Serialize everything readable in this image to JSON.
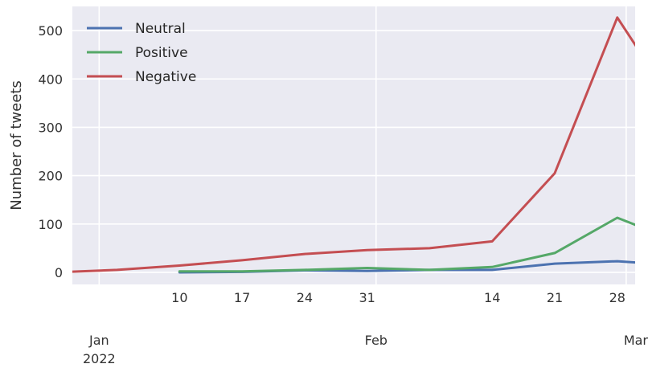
{
  "chart_data": {
    "type": "line",
    "title": "",
    "xlabel": "",
    "ylabel": "Number of tweets",
    "x_range": [
      "2021-12-29",
      "2022-03-02"
    ],
    "ylim": [
      -25,
      550
    ],
    "grid": true,
    "legend_position": "top-left",
    "y_ticks": [
      0,
      100,
      200,
      300,
      400,
      500
    ],
    "x_minor_ticks": [
      {
        "date": "2022-01-10",
        "label": "10"
      },
      {
        "date": "2022-01-17",
        "label": "17"
      },
      {
        "date": "2022-01-24",
        "label": "24"
      },
      {
        "date": "2022-01-31",
        "label": "31"
      },
      {
        "date": "2022-02-14",
        "label": "14"
      },
      {
        "date": "2022-02-21",
        "label": "21"
      },
      {
        "date": "2022-02-28",
        "label": "28"
      }
    ],
    "x_major_ticks": [
      {
        "date": "2022-01-01",
        "label": "Jan",
        "sublabel": "2022"
      },
      {
        "date": "2022-02-01",
        "label": "Feb",
        "sublabel": ""
      },
      {
        "date": "2022-03-01",
        "label": "Mar",
        "sublabel": ""
      }
    ],
    "series": [
      {
        "name": "Neutral",
        "color": "#4c72b0",
        "points": [
          {
            "x": "2022-01-10",
            "y": 0
          },
          {
            "x": "2022-01-17",
            "y": 1
          },
          {
            "x": "2022-01-24",
            "y": 4
          },
          {
            "x": "2022-01-31",
            "y": 3
          },
          {
            "x": "2022-02-07",
            "y": 5
          },
          {
            "x": "2022-02-14",
            "y": 5
          },
          {
            "x": "2022-02-21",
            "y": 18
          },
          {
            "x": "2022-02-28",
            "y": 23
          },
          {
            "x": "2022-03-07",
            "y": 14
          }
        ]
      },
      {
        "name": "Positive",
        "color": "#55a868",
        "points": [
          {
            "x": "2022-01-10",
            "y": 2
          },
          {
            "x": "2022-01-17",
            "y": 2
          },
          {
            "x": "2022-01-24",
            "y": 5
          },
          {
            "x": "2022-01-31",
            "y": 9
          },
          {
            "x": "2022-02-07",
            "y": 5
          },
          {
            "x": "2022-02-14",
            "y": 11
          },
          {
            "x": "2022-02-21",
            "y": 40
          },
          {
            "x": "2022-02-28",
            "y": 113
          },
          {
            "x": "2022-03-07",
            "y": 62
          }
        ]
      },
      {
        "name": "Negative",
        "color": "#c44e52",
        "points": [
          {
            "x": "2021-12-27",
            "y": 0
          },
          {
            "x": "2022-01-03",
            "y": 5
          },
          {
            "x": "2022-01-10",
            "y": 14
          },
          {
            "x": "2022-01-17",
            "y": 25
          },
          {
            "x": "2022-01-24",
            "y": 38
          },
          {
            "x": "2022-01-31",
            "y": 46
          },
          {
            "x": "2022-02-07",
            "y": 50
          },
          {
            "x": "2022-02-14",
            "y": 64
          },
          {
            "x": "2022-02-21",
            "y": 205
          },
          {
            "x": "2022-02-28",
            "y": 527
          },
          {
            "x": "2022-03-07",
            "y": 330
          }
        ]
      }
    ]
  }
}
